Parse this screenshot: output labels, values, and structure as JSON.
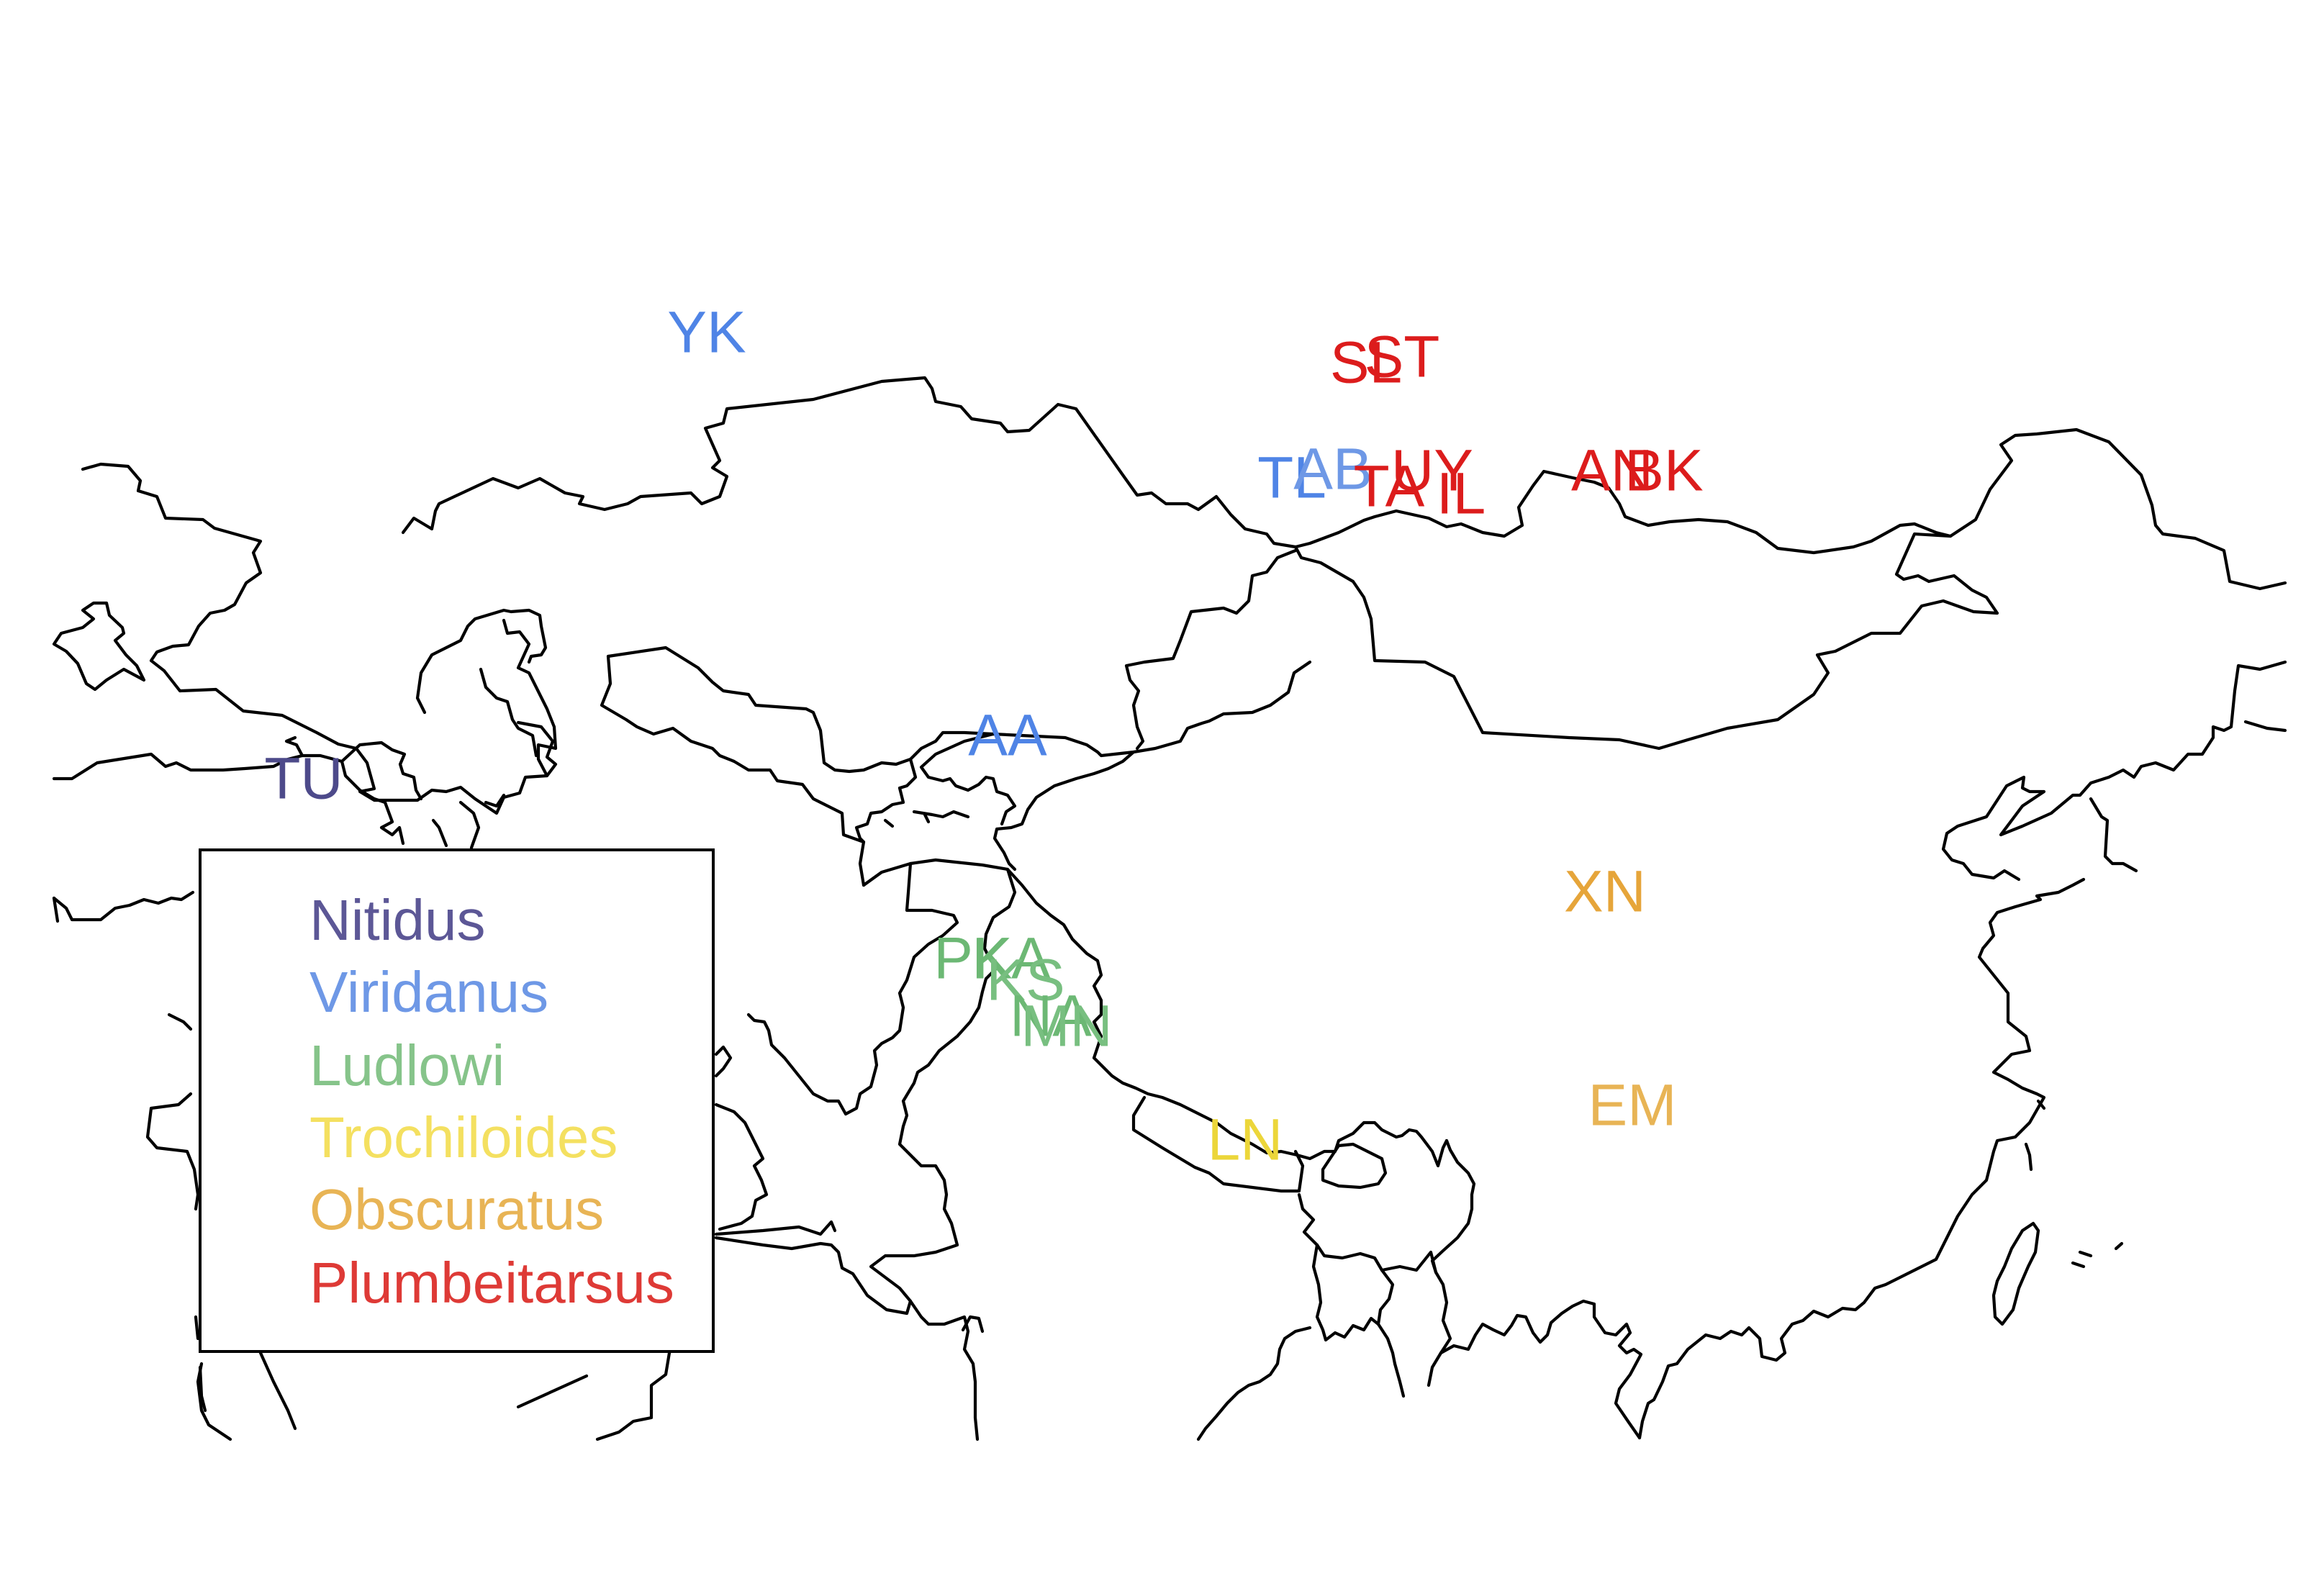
{
  "legend": {
    "entries": [
      {
        "name": "Nitidus",
        "color": "#5c5796"
      },
      {
        "name": "Viridanus",
        "color": "#6e98e6"
      },
      {
        "name": "Ludlowi",
        "color": "#86c48a"
      },
      {
        "name": "Trochiloides",
        "color": "#f4e060"
      },
      {
        "name": "Obscuratus",
        "color": "#e8b455"
      },
      {
        "name": "Plumbeitarsus",
        "color": "#de3a36"
      }
    ]
  },
  "sites": [
    {
      "code": "YK",
      "group": "Viridanus",
      "color": "#4f84e6"
    },
    {
      "code": "SL",
      "group": "Plumbeitarsus",
      "color": "#dc1c1c"
    },
    {
      "code": "ST",
      "group": "Plumbeitarsus",
      "color": "#dc1c1c"
    },
    {
      "code": "TL",
      "group": "Viridanus",
      "color": "#4f84e6"
    },
    {
      "code": "AB",
      "group": "Viridanus",
      "color": "#6e98e6"
    },
    {
      "code": "TA",
      "group": "Plumbeitarsus",
      "color": "#dc1c1c"
    },
    {
      "code": "UY",
      "group": "Plumbeitarsus",
      "color": "#dc1c1c"
    },
    {
      "code": "IL",
      "group": "Plumbeitarsus",
      "color": "#dc1c1c"
    },
    {
      "code": "AN",
      "group": "Plumbeitarsus",
      "color": "#dc1c1c"
    },
    {
      "code": "BK",
      "group": "Plumbeitarsus",
      "color": "#dc1c1c"
    },
    {
      "code": "AA",
      "group": "Viridanus",
      "color": "#4f84e6"
    },
    {
      "code": "TU",
      "group": "Nitidus",
      "color": "#4d4a8a"
    },
    {
      "code": "XN",
      "group": "Obscuratus",
      "color": "#e6a53a"
    },
    {
      "code": "PK",
      "group": "Ludlowi",
      "color": "#6cb874"
    },
    {
      "code": "KA",
      "group": "Ludlowi",
      "color": "#6cb874"
    },
    {
      "code": "KS",
      "group": "Ludlowi",
      "color": "#78bf80"
    },
    {
      "code": "NA",
      "group": "Ludlowi",
      "color": "#6cb874"
    },
    {
      "code": "MN",
      "group": "Ludlowi",
      "color": "#78bf80"
    },
    {
      "code": "EM",
      "group": "Obscuratus",
      "color": "#e8b455"
    },
    {
      "code": "LN",
      "group": "Trochiloides",
      "color": "#ecd63a"
    }
  ]
}
